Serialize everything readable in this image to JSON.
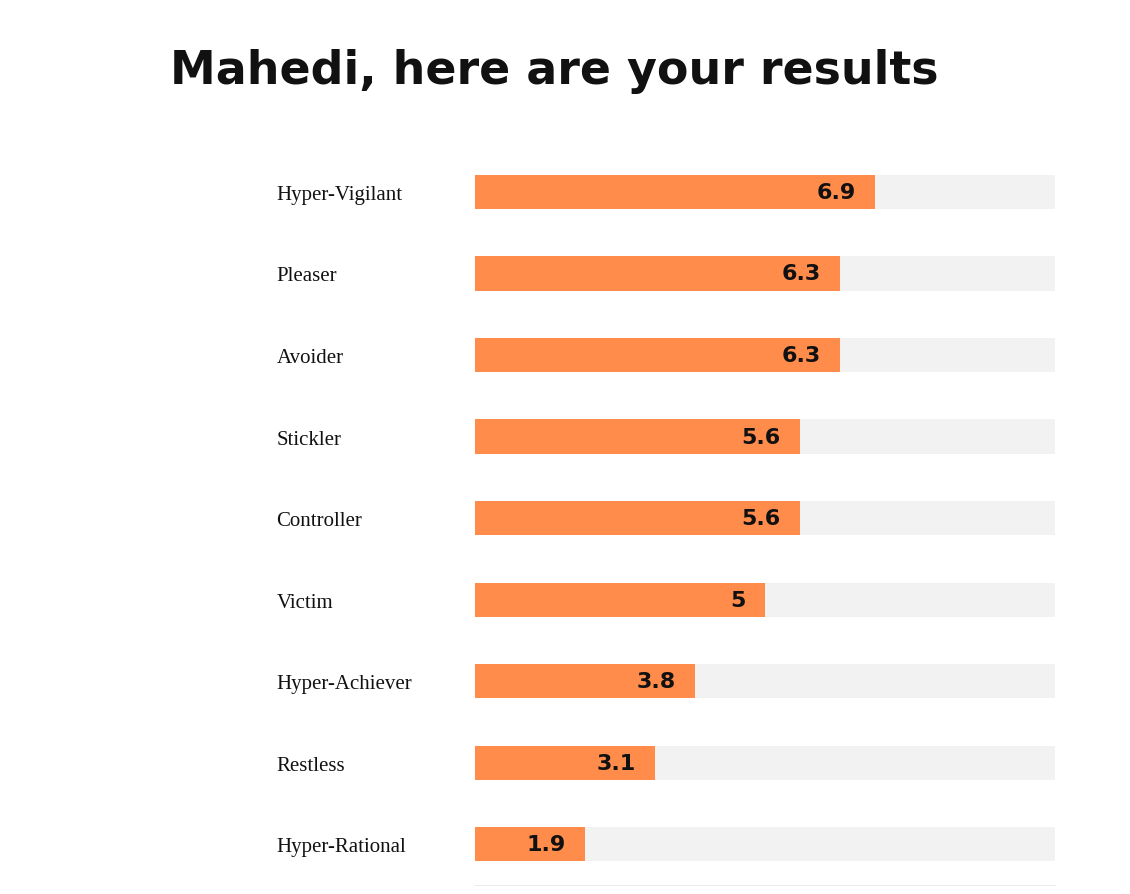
{
  "chart_data": {
    "type": "bar",
    "title": "Mahedi, here are your results",
    "orientation": "horizontal",
    "categories": [
      "Hyper-Vigilant",
      "Pleaser",
      "Avoider",
      "Stickler",
      "Controller",
      "Victim",
      "Hyper-Achiever",
      "Restless",
      "Hyper-Rational"
    ],
    "values": [
      6.9,
      6.3,
      6.3,
      5.6,
      5.6,
      5,
      3.8,
      3.1,
      1.9
    ],
    "color": "#ff8c4b",
    "xlim": [
      0,
      10
    ],
    "data_labels": true,
    "tick_labels": "y",
    "grid": false
  }
}
